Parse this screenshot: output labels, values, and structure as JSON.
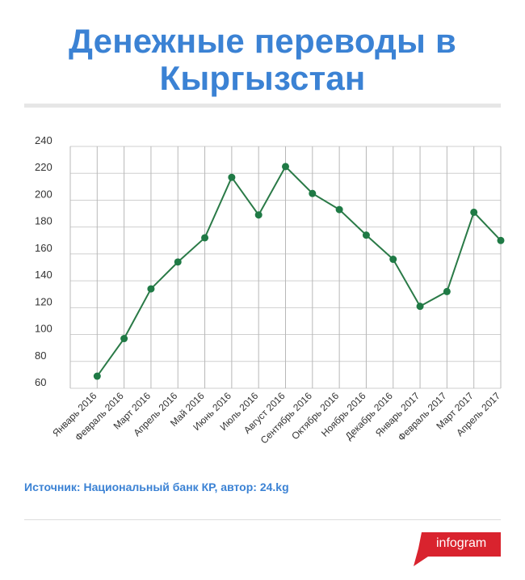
{
  "title_line1": "Денежные переводы в",
  "title_line2": "Кыргызстан",
  "source": "Источник: Национальный банк КР, автор: 24.kg",
  "brand": "infogram",
  "colors": {
    "title": "#3b82d4",
    "line": "#2a7a47",
    "point": "#1f7a45",
    "brand": "#d9232e"
  },
  "chart_data": {
    "type": "line",
    "categories": [
      "Январь 2016",
      "Февраль 2016",
      "Март 2016",
      "Апрель 2016",
      "Май 2016",
      "Июнь 2016",
      "Июль 2016",
      "Август 2016",
      "Сентябрь 2016",
      "Октябрь 2016",
      "Ноябрь 2016",
      "Декабрь 2016",
      "Январь 2017",
      "Февраль 2017",
      "Март 2017",
      "Апрель 2017"
    ],
    "series": [
      {
        "values": [
          69,
          97,
          134,
          154,
          172,
          217,
          189,
          225,
          205,
          193,
          174,
          156,
          121,
          132,
          191,
          170
        ]
      }
    ],
    "yticks": [
      60,
      80,
      100,
      120,
      140,
      160,
      180,
      200,
      220,
      240
    ],
    "ylim": [
      60,
      240
    ],
    "xlabel": "",
    "ylabel": "",
    "grid": true,
    "legend": "none"
  }
}
